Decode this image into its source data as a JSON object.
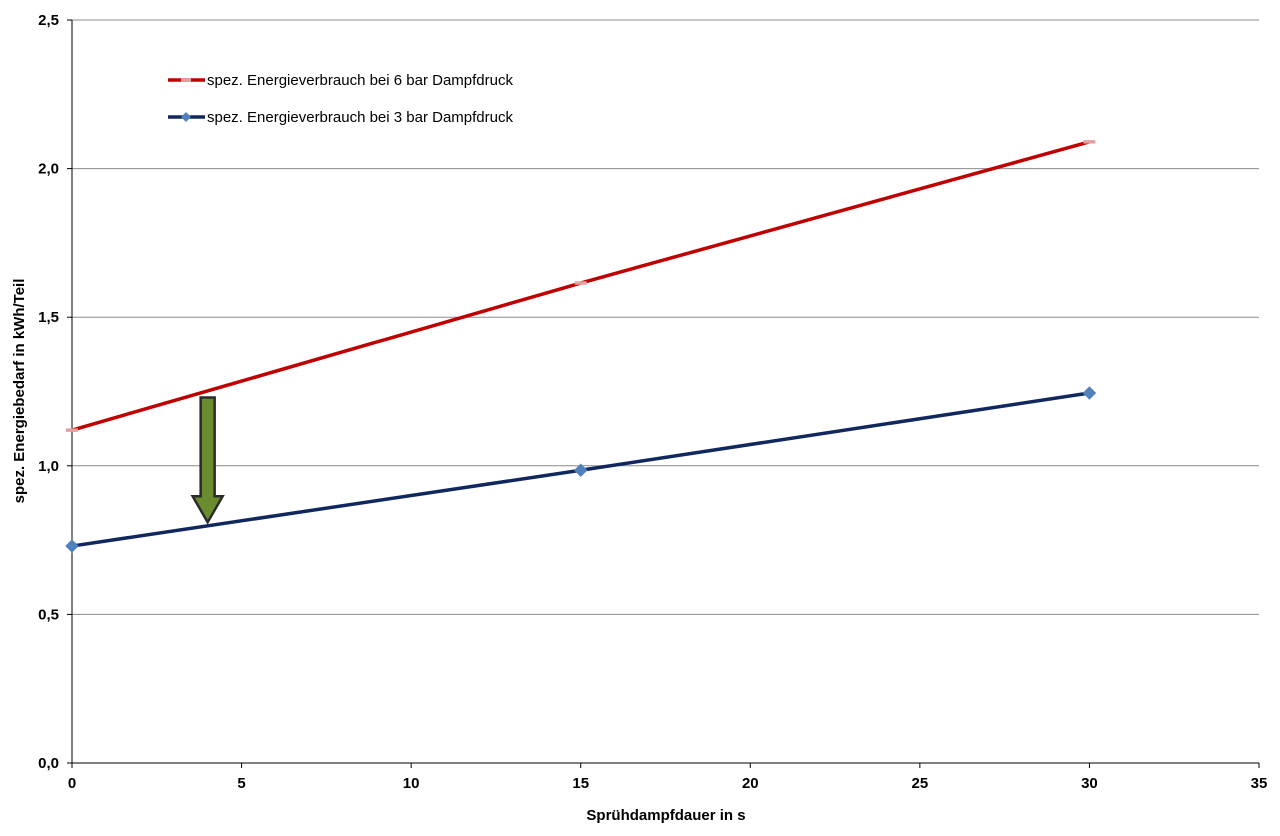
{
  "colors": {
    "series_6bar": "#c00000",
    "series_3bar": "#10285e",
    "marker_3bar": "#4f81bd",
    "marker_6bar": "#e6a0a0",
    "gridline": "#8c8c8c",
    "axis": "#000000",
    "arrow_fill": "#6b8c2e",
    "arrow_stroke": "#2b2b2b"
  },
  "chart_data": {
    "type": "line",
    "title": "",
    "xlabel": "Sprühdampfdauer in s",
    "ylabel": "spez. Energiebedarf in kWh/Teil",
    "xlim": [
      0,
      35
    ],
    "ylim": [
      0,
      2.5
    ],
    "x_ticks": [
      0,
      5,
      10,
      15,
      20,
      25,
      30,
      35
    ],
    "x_tick_labels": [
      "0",
      "5",
      "10",
      "15",
      "20",
      "25",
      "30",
      "35"
    ],
    "y_ticks": [
      0,
      0.5,
      1.0,
      1.5,
      2.0,
      2.5
    ],
    "y_tick_labels": [
      "0,0",
      "0,5",
      "1,0",
      "1,5",
      "2,0",
      "2,5"
    ],
    "grid": "horizontal",
    "legend_position": "top-left",
    "series": [
      {
        "name": "spez. Energieverbrauch bei 6 bar Dampfdruck",
        "x": [
          0,
          15,
          30
        ],
        "y": [
          1.12,
          1.615,
          2.09
        ],
        "color": "#c00000",
        "marker": "dash"
      },
      {
        "name": "spez. Energieverbrauch bei 3 bar Dampfdruck",
        "x": [
          0,
          15,
          30
        ],
        "y": [
          0.73,
          0.985,
          1.245
        ],
        "color": "#10285e",
        "marker": "diamond"
      }
    ],
    "annotations": [
      {
        "type": "arrow-down",
        "x": 4,
        "y_from": 1.23,
        "y_to": 0.81,
        "color": "#6b8c2e"
      }
    ]
  }
}
